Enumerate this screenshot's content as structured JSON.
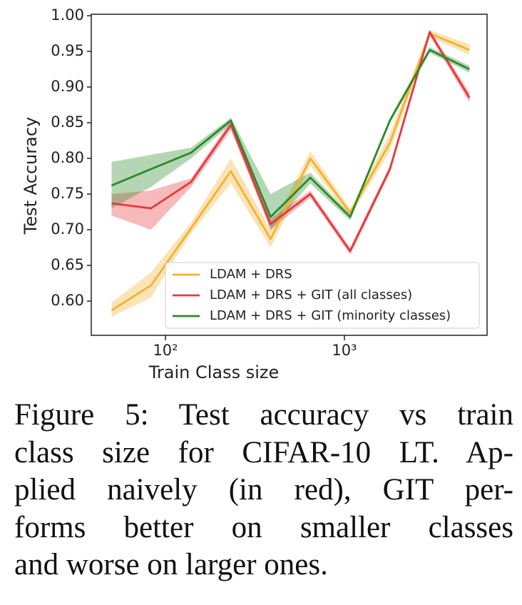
{
  "chart_data": {
    "type": "line",
    "x": [
      50,
      83,
      139,
      232,
      387,
      645,
      1077,
      1796,
      2997,
      5000
    ],
    "xlabel": "Train Class size",
    "ylabel": "Test Accuracy",
    "xscale": "log",
    "xlim": [
      38.5,
      6270
    ],
    "xticks": [
      {
        "value": 100,
        "label": "10²"
      },
      {
        "value": 1000,
        "label": "10³"
      }
    ],
    "ylim": [
      0.552,
      1.002
    ],
    "yticks": [
      {
        "value": 0.6,
        "label": "0.60"
      },
      {
        "value": 0.65,
        "label": "0.65"
      },
      {
        "value": 0.7,
        "label": "0.70"
      },
      {
        "value": 0.75,
        "label": "0.75"
      },
      {
        "value": 0.8,
        "label": "0.80"
      },
      {
        "value": 0.85,
        "label": "0.85"
      },
      {
        "value": 0.9,
        "label": "0.90"
      },
      {
        "value": 0.95,
        "label": "0.95"
      },
      {
        "value": 1.0,
        "label": "1.00"
      }
    ],
    "legend": "lower right",
    "series": [
      {
        "name": "LDAM + DRS",
        "color": "#f2b230",
        "values": [
          0.587,
          0.622,
          0.702,
          0.782,
          0.687,
          0.8,
          0.724,
          0.822,
          0.975,
          0.952
        ],
        "lower": [
          0.578,
          0.605,
          0.695,
          0.765,
          0.675,
          0.79,
          0.718,
          0.81,
          0.97,
          0.945
        ],
        "upper": [
          0.598,
          0.64,
          0.71,
          0.8,
          0.7,
          0.81,
          0.73,
          0.835,
          0.98,
          0.96
        ]
      },
      {
        "name": "LDAM + DRS + GIT (all classes)",
        "color": "#e8373a",
        "values": [
          0.737,
          0.73,
          0.767,
          0.847,
          0.708,
          0.75,
          0.67,
          0.785,
          0.977,
          0.885
        ],
        "lower": [
          0.72,
          0.7,
          0.76,
          0.84,
          0.7,
          0.745,
          0.665,
          0.78,
          0.972,
          0.878
        ],
        "upper": [
          0.75,
          0.755,
          0.772,
          0.853,
          0.715,
          0.755,
          0.675,
          0.79,
          0.98,
          0.892
        ]
      },
      {
        "name": "LDAM + DRS + GIT (minority classes)",
        "color": "#2a8a2a",
        "values": [
          0.762,
          0.785,
          0.808,
          0.853,
          0.718,
          0.773,
          0.718,
          0.853,
          0.952,
          0.925
        ],
        "lower": [
          0.73,
          0.76,
          0.8,
          0.848,
          0.7,
          0.765,
          0.713,
          0.85,
          0.948,
          0.92
        ],
        "upper": [
          0.795,
          0.805,
          0.815,
          0.857,
          0.75,
          0.78,
          0.722,
          0.857,
          0.956,
          0.93
        ]
      }
    ]
  },
  "caption_lines": [
    "Figure 5: Test accuracy vs train",
    "class size for CIFAR-10 LT. Ap-",
    "plied naively (in red), GIT per-",
    "forms better on smaller classes",
    "and worse on larger ones."
  ]
}
